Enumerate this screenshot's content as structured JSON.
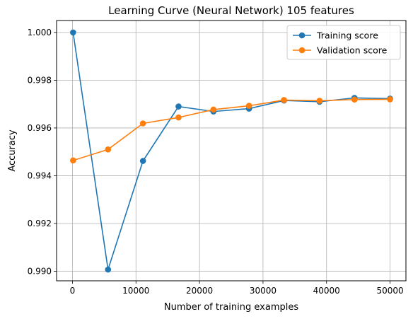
{
  "chart_data": {
    "type": "line",
    "title": "Learning Curve (Neural Network) 105 features",
    "xlabel": "Number of training examples",
    "ylabel": "Accuracy",
    "xlim": [
      -2500,
      52500
    ],
    "ylim": [
      0.9896,
      1.0005
    ],
    "xticks": [
      0,
      10000,
      20000,
      30000,
      40000,
      50000
    ],
    "xtick_labels": [
      "0",
      "10000",
      "20000",
      "30000",
      "40000",
      "50000"
    ],
    "yticks": [
      0.99,
      0.992,
      0.994,
      0.996,
      0.998,
      1.0
    ],
    "ytick_labels": [
      "0.990",
      "0.992",
      "0.994",
      "0.996",
      "0.998",
      "1.000"
    ],
    "grid": true,
    "legend_position": "top-right",
    "x": [
      100,
      5600,
      11100,
      16700,
      22200,
      27800,
      33300,
      38900,
      44400,
      50000
    ],
    "series": [
      {
        "name": "Training score",
        "color": "#1f77b4",
        "values": [
          1.0,
          0.99007,
          0.99462,
          0.9969,
          0.99669,
          0.99681,
          0.99715,
          0.9971,
          0.99726,
          0.99723
        ]
      },
      {
        "name": "Validation score",
        "color": "#ff7f0e",
        "values": [
          0.99464,
          0.9951,
          0.99619,
          0.99644,
          0.99677,
          0.99693,
          0.99717,
          0.99714,
          0.99719,
          0.9972
        ]
      }
    ]
  }
}
